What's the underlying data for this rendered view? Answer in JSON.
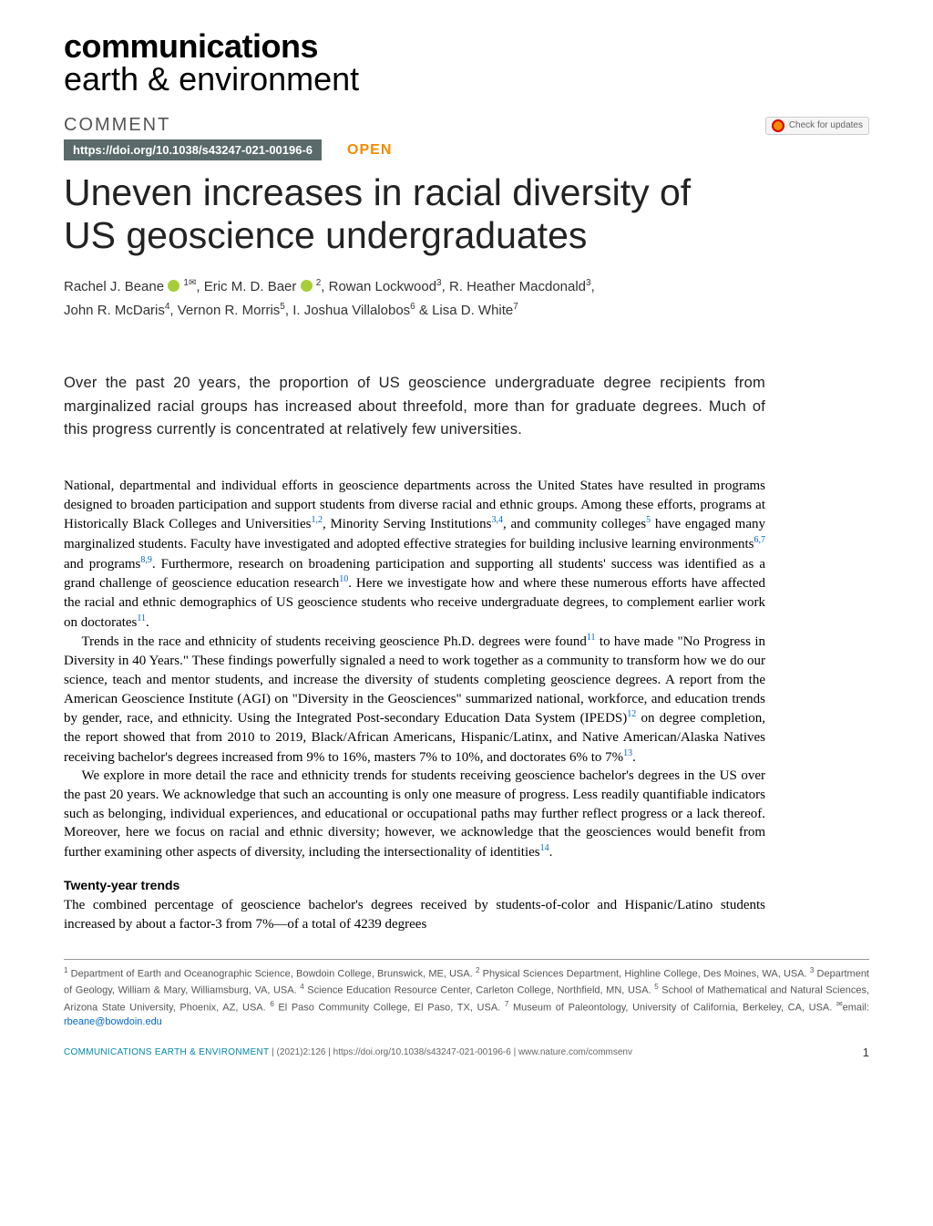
{
  "journal": {
    "bold": "communications",
    "light": "earth & environment"
  },
  "article_type": "COMMENT",
  "check_updates": "Check for updates",
  "doi": "https://doi.org/10.1038/s43247-021-00196-6",
  "open_access": "OPEN",
  "title": "Uneven increases in racial diversity of US geoscience undergraduates",
  "authors_html": "Rachel J. Beane <span class='orcid' data-name='orcid-icon' data-interactable='false'></span> <sup>1✉</sup>, Eric M. D. Baer <span class='orcid' data-name='orcid-icon' data-interactable='false'></span> <sup>2</sup>, Rowan Lockwood<sup>3</sup>, R. Heather Macdonald<sup>3</sup>, John R. McDaris<sup>4</sup>, Vernon R. Morris<sup>5</sup>, I. Joshua Villalobos<sup>6</sup> & Lisa D. White<sup>7</sup>",
  "abstract": "Over the past 20 years, the proportion of US geoscience undergraduate degree recipients from marginalized racial groups has increased about threefold, more than for graduate degrees. Much of this progress currently is concentrated at relatively few universities.",
  "para1_html": "National, departmental and individual efforts in geoscience departments across the United States have resulted in programs designed to broaden participation and support students from diverse racial and ethnic groups. Among these efforts, programs at Historically Black Colleges and Universities<span class='ref'>1,2</span>, Minority Serving Institutions<span class='ref'>3,4</span>, and community colleges<span class='ref'>5</span> have engaged many marginalized students. Faculty have investigated and adopted effective strategies for building inclusive learning environments<span class='ref'>6,7</span> and programs<span class='ref'>8,9</span>. Furthermore, research on broadening participation and supporting all students' success was identified as a grand challenge of geoscience education research<span class='ref'>10</span>. Here we investigate how and where these numerous efforts have affected the racial and ethnic demographics of US geoscience students who receive undergraduate degrees, to complement earlier work on doctorates<span class='ref'>11</span>.",
  "para2_html": "Trends in the race and ethnicity of students receiving geoscience Ph.D. degrees were found<span class='ref'>11</span> to have made \"No Progress in Diversity in 40 Years.\" These findings powerfully signaled a need to work together as a community to transform how we do our science, teach and mentor students, and increase the diversity of students completing geoscience degrees. A report from the American Geoscience Institute (AGI) on \"Diversity in the Geosciences\" summarized national, workforce, and education trends by gender, race, and ethnicity. Using the Integrated Post-secondary Education Data System (IPEDS)<span class='ref'>12</span> on degree completion, the report showed that from 2010 to 2019, Black/African Americans, Hispanic/Latinx, and Native American/Alaska Natives receiving bachelor's degrees increased from 9% to 16%, masters 7% to 10%, and doctorates 6% to 7%<span class='ref'>13</span>.",
  "para3_html": "We explore in more detail the race and ethnicity trends for students receiving geoscience bachelor's degrees in the US over the past 20 years. We acknowledge that such an accounting is only one measure of progress. Less readily quantifiable indicators such as belonging, individual experiences, and educational or occupational paths may further reflect progress or a lack thereof. Moreover, here we focus on racial and ethnic diversity; however, we acknowledge that the geosciences would benefit from further examining other aspects of diversity, including the intersectionality of identities<span class='ref'>14</span>.",
  "section1_head": "Twenty-year trends",
  "section1_para_html": "The combined percentage of geoscience bachelor's degrees received by students-of-color and Hispanic/Latino students increased by about a factor-3 from 7%—of a total of 4239 degrees",
  "affiliations_html": "<sup>1</sup> Department of Earth and Oceanographic Science, Bowdoin College, Brunswick, ME, USA. <sup>2</sup> Physical Sciences Department, Highline College, Des Moines, WA, USA. <sup>3</sup> Department of Geology, William & Mary, Williamsburg, VA, USA. <sup>4</sup> Science Education Resource Center, Carleton College, Northfield, MN, USA. <sup>5</sup> School of Mathematical and Natural Sciences, Arizona State University, Phoenix, AZ, USA. <sup>6</sup> El Paso Community College, El Paso, TX, USA. <sup>7</sup> Museum of Paleontology, University of California, Berkeley, CA, USA. <sup>✉</sup>email: <span class='email'>rbeane@bowdoin.edu</span>",
  "footer": {
    "journal": "COMMUNICATIONS EARTH & ENVIRONMENT",
    "citation": " | (2021)2:126 | https://doi.org/10.1038/s43247-021-00196-6 | www.nature.com/commsenv",
    "page": "1"
  },
  "colors": {
    "doi_bg": "#5a6a6a",
    "open": "#f38b00",
    "orcid": "#a6ce39",
    "link": "#0066cc",
    "footer_journal": "#0088aa"
  }
}
